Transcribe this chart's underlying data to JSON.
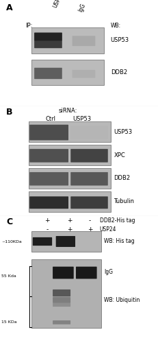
{
  "fig_width": 2.31,
  "fig_height": 5.0,
  "bg_color": "#ffffff",
  "panel_A": {
    "label": "A",
    "ip_label": "IP:",
    "ip_cols": [
      "USP53",
      "IgG"
    ],
    "wb_label": "WB:",
    "wb_rows": [
      "USP53",
      "DDB2"
    ]
  },
  "panel_B": {
    "label": "B",
    "sirna_label": "siRNA:",
    "cols": [
      "Ctrl",
      "USP53"
    ],
    "wb_rows": [
      "USP53",
      "XPC",
      "DDB2",
      "Tubulin"
    ]
  },
  "panel_C": {
    "label": "C",
    "row1_label": "DDB2-His tag",
    "row2_label": "USP24",
    "row1_vals": [
      "+",
      "+",
      "-"
    ],
    "row2_vals": [
      "-",
      "+",
      "+"
    ],
    "mw_label1": "~110KDa",
    "mw_label2": "55 Kda",
    "mw_label3": "15 KDa",
    "wb_label1": "WB: His tag",
    "wb_label2": "WB: Ubiquitin",
    "igg_label": "IgG"
  }
}
